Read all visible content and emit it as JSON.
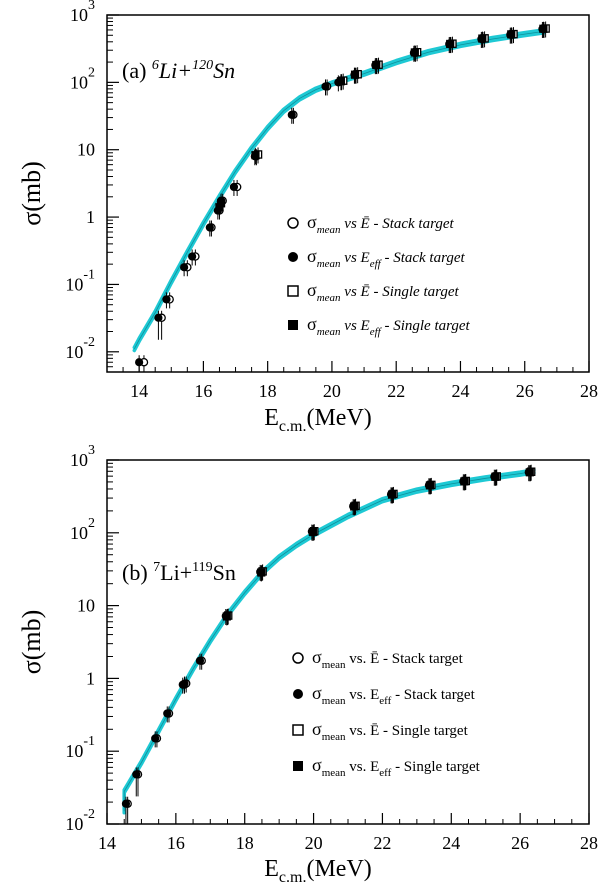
{
  "chart_data": [
    {
      "type": "scatter",
      "panel_label": "(a)",
      "reaction": {
        "a1": "6",
        "a2": "Li+",
        "a3": "120",
        "a4": "Sn"
      },
      "xlabel": {
        "main": "E",
        "sub": "c.m.",
        "unit": "(MeV)"
      },
      "ylabel": "σ(mb)",
      "xlim": [
        13,
        28
      ],
      "ylim_log10": [
        -2.3,
        3
      ],
      "log_y": true,
      "grid": false,
      "x_ticks": [
        "14",
        "16",
        "18",
        "20",
        "22",
        "24",
        "26",
        "28"
      ],
      "y_ticks": [
        {
          "base": "10",
          "exp": "3"
        },
        {
          "base": "10",
          "exp": "2"
        },
        {
          "base": "10",
          "exp": ""
        },
        {
          "base": "1",
          "exp": ""
        },
        {
          "base": "10",
          "exp": "-1"
        },
        {
          "base": "10",
          "exp": "-2"
        }
      ],
      "legend_position": "lower-right",
      "legend": [
        {
          "marker": "open-circle",
          "sym": "σ",
          "sub": "mean",
          "mid": "vs",
          "xsym": "Ē",
          "xsub": "",
          "tail": "- Stack target"
        },
        {
          "marker": "filled-circle",
          "sym": "σ",
          "sub": "mean",
          "mid": "vs",
          "xsym": "E",
          "xsub": "eff",
          "tail": "- Stack target"
        },
        {
          "marker": "open-square",
          "sym": "σ",
          "sub": "mean",
          "mid": "vs",
          "xsym": "Ē",
          "xsub": "",
          "tail": "- Single target"
        },
        {
          "marker": "filled-square",
          "sym": "σ",
          "sub": "mean",
          "mid": "vs",
          "xsym": "E",
          "xsub": "eff",
          "tail": "- Single target"
        }
      ],
      "curve_color": "#1ec9d4",
      "curve": [
        [
          13.85,
          0.011
        ],
        [
          14.0,
          0.015
        ],
        [
          14.5,
          0.038
        ],
        [
          15.0,
          0.11
        ],
        [
          15.5,
          0.3
        ],
        [
          16.0,
          0.8
        ],
        [
          16.5,
          2.0
        ],
        [
          17.0,
          4.8
        ],
        [
          17.5,
          10.5
        ],
        [
          18.0,
          21
        ],
        [
          18.5,
          38
        ],
        [
          19.0,
          58
        ],
        [
          19.5,
          78
        ],
        [
          20.0,
          96
        ],
        [
          21.0,
          135
        ],
        [
          22.0,
          200
        ],
        [
          23.0,
          280
        ],
        [
          24.0,
          360
        ],
        [
          25.0,
          440
        ],
        [
          26.0,
          520
        ],
        [
          26.6,
          570
        ]
      ],
      "series": [
        {
          "name": "",
          "marker": "open-circle",
          "points": [
            [
              14.15,
              0.007
            ],
            [
              14.7,
              0.032
            ],
            [
              14.95,
              0.06
            ],
            [
              15.5,
              0.18
            ],
            [
              15.75,
              0.26
            ],
            [
              16.25,
              0.7
            ],
            [
              16.5,
              1.25
            ],
            [
              16.6,
              1.75
            ],
            [
              17.05,
              2.8
            ],
            [
              17.65,
              8
            ],
            [
              18.8,
              33
            ],
            [
              19.85,
              87
            ],
            [
              20.3,
              104
            ],
            [
              20.75,
              130
            ],
            [
              21.4,
              180
            ],
            [
              22.6,
              275
            ],
            [
              23.7,
              370
            ],
            [
              24.7,
              440
            ],
            [
              25.6,
              510
            ],
            [
              26.6,
              620
            ]
          ]
        },
        {
          "name": "",
          "marker": "filled-circle",
          "points": [
            [
              14.0,
              0.007
            ],
            [
              14.6,
              0.032
            ],
            [
              14.85,
              0.06
            ],
            [
              15.4,
              0.18
            ],
            [
              15.65,
              0.26
            ],
            [
              16.2,
              0.7
            ],
            [
              16.45,
              1.25
            ],
            [
              16.55,
              1.75
            ],
            [
              16.95,
              2.8
            ],
            [
              17.6,
              8
            ],
            [
              18.75,
              33
            ],
            [
              19.8,
              87
            ],
            [
              20.2,
              100
            ],
            [
              20.7,
              130
            ],
            [
              21.35,
              180
            ],
            [
              22.55,
              275
            ],
            [
              23.65,
              370
            ],
            [
              24.65,
              440
            ],
            [
              25.55,
              510
            ],
            [
              26.55,
              620
            ]
          ]
        },
        {
          "name": "",
          "marker": "open-square",
          "points": [
            [
              17.7,
              8.5
            ],
            [
              20.35,
              106
            ],
            [
              20.8,
              132
            ],
            [
              21.45,
              183
            ],
            [
              22.65,
              280
            ],
            [
              23.75,
              375
            ],
            [
              24.75,
              450
            ],
            [
              25.65,
              520
            ],
            [
              26.65,
              630
            ]
          ]
        },
        {
          "name": "",
          "marker": "filled-square",
          "points": [
            [
              16.5,
              1.4
            ],
            [
              16.55,
              1.6
            ],
            [
              17.62,
              8.3
            ],
            [
              20.28,
              104
            ],
            [
              20.72,
              130
            ],
            [
              21.38,
              181
            ],
            [
              22.58,
              278
            ],
            [
              23.68,
              372
            ],
            [
              24.68,
              447
            ],
            [
              25.58,
              516
            ],
            [
              26.58,
              625
            ]
          ]
        }
      ]
    },
    {
      "type": "scatter",
      "panel_label": "(b)",
      "reaction": {
        "a1": "7",
        "a2": "Li+",
        "a3": "119",
        "a4": "Sn"
      },
      "xlabel": {
        "main": "E",
        "sub": "c.m.",
        "unit": "(MeV)"
      },
      "ylabel": "σ(mb)",
      "xlim": [
        14,
        28
      ],
      "ylim_log10": [
        -2,
        3
      ],
      "log_y": true,
      "grid": false,
      "x_ticks": [
        "14",
        "16",
        "18",
        "20",
        "22",
        "24",
        "26",
        "28"
      ],
      "y_ticks": [
        {
          "base": "10",
          "exp": "3"
        },
        {
          "base": "10",
          "exp": "2"
        },
        {
          "base": "10",
          "exp": ""
        },
        {
          "base": "1",
          "exp": ""
        },
        {
          "base": "10",
          "exp": "-1"
        },
        {
          "base": "10",
          "exp": "-2"
        }
      ],
      "legend_position": "lower-right",
      "legend": [
        {
          "marker": "open-circle",
          "sym": "σ",
          "sub": "mean",
          "mid": "vs.",
          "xsym": "Ē",
          "xsub": "",
          "tail": "- Stack target"
        },
        {
          "marker": "filled-circle",
          "sym": "σ",
          "sub": "mean",
          "mid": "vs.",
          "xsym": "E",
          "xsub": "eff",
          "tail": "- Stack target"
        },
        {
          "marker": "open-square",
          "sym": "σ",
          "sub": "mean",
          "mid": "vs.",
          "xsym": "Ē",
          "xsub": "",
          "tail": "- Single target"
        },
        {
          "marker": "filled-square",
          "sym": "σ",
          "sub": "mean",
          "mid": "vs.",
          "xsym": "E",
          "xsub": "eff",
          "tail": "- Single target"
        }
      ],
      "curve_color": "#1ec9d4",
      "curve": [
        [
          14.5,
          0.015
        ],
        [
          14.5,
          0.028
        ],
        [
          15.0,
          0.07
        ],
        [
          15.5,
          0.19
        ],
        [
          16.0,
          0.52
        ],
        [
          16.5,
          1.35
        ],
        [
          17.0,
          3.3
        ],
        [
          17.5,
          7.5
        ],
        [
          18.0,
          15
        ],
        [
          18.5,
          28
        ],
        [
          19.0,
          46
        ],
        [
          19.5,
          68
        ],
        [
          20.0,
          95
        ],
        [
          21.0,
          170
        ],
        [
          22.0,
          280
        ],
        [
          23.0,
          380
        ],
        [
          24.0,
          470
        ],
        [
          25.0,
          560
        ],
        [
          26.0,
          650
        ],
        [
          26.4,
          700
        ]
      ],
      "series": [
        {
          "name": "",
          "marker": "open-circle",
          "points": [
            [
              14.6,
              0.019
            ],
            [
              14.9,
              0.048
            ],
            [
              15.45,
              0.15
            ],
            [
              15.8,
              0.33
            ],
            [
              16.25,
              0.82
            ],
            [
              16.3,
              0.85
            ],
            [
              16.75,
              1.75
            ],
            [
              17.5,
              7.2
            ],
            [
              18.5,
              29
            ],
            [
              20.0,
              104
            ],
            [
              21.2,
              232
            ],
            [
              22.3,
              338
            ],
            [
              23.4,
              450
            ],
            [
              24.4,
              510
            ],
            [
              25.3,
              590
            ],
            [
              26.3,
              680
            ]
          ]
        },
        {
          "name": "",
          "marker": "filled-circle",
          "points": [
            [
              14.55,
              0.019
            ],
            [
              14.85,
              0.048
            ],
            [
              15.4,
              0.15
            ],
            [
              15.75,
              0.33
            ],
            [
              16.2,
              0.82
            ],
            [
              16.25,
              0.85
            ],
            [
              16.7,
              1.75
            ],
            [
              17.45,
              7.2
            ],
            [
              18.45,
              29
            ],
            [
              19.95,
              104
            ],
            [
              21.15,
              232
            ],
            [
              22.25,
              338
            ],
            [
              23.35,
              450
            ],
            [
              24.35,
              510
            ],
            [
              25.25,
              590
            ],
            [
              26.25,
              680
            ]
          ]
        },
        {
          "name": "",
          "marker": "open-square",
          "points": [
            [
              17.52,
              7.3
            ],
            [
              18.52,
              29.5
            ],
            [
              20.02,
              105
            ],
            [
              21.22,
              235
            ],
            [
              22.32,
              342
            ],
            [
              23.42,
              455
            ],
            [
              24.42,
              515
            ],
            [
              25.32,
              595
            ],
            [
              26.32,
              690
            ]
          ]
        },
        {
          "name": "",
          "marker": "filled-square",
          "points": [
            [
              17.48,
              7.1
            ],
            [
              18.48,
              28.5
            ],
            [
              19.98,
              103
            ],
            [
              21.18,
              230
            ],
            [
              22.28,
              335
            ],
            [
              23.38,
              448
            ],
            [
              24.38,
              508
            ],
            [
              25.28,
              588
            ],
            [
              26.28,
              678
            ]
          ]
        }
      ]
    }
  ]
}
